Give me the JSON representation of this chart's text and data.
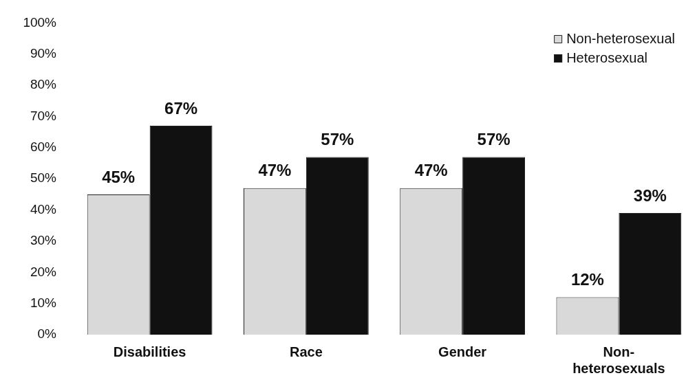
{
  "chart_data": {
    "type": "bar",
    "categories": [
      "Disabilities",
      "Race",
      "Gender",
      "Non-heterosexuals"
    ],
    "series": [
      {
        "name": "Non-heterosexual",
        "color": "#d9d9d9",
        "values": [
          45,
          47,
          47,
          12
        ],
        "value_labels": [
          "45%",
          "47%",
          "47%",
          "12%"
        ]
      },
      {
        "name": "Heterosexual",
        "color": "#111111",
        "values": [
          67,
          57,
          57,
          39
        ],
        "value_labels": [
          "67%",
          "57%",
          "57%",
          "39%"
        ]
      }
    ],
    "ylim": [
      0,
      100
    ],
    "yticks": [
      {
        "value": 0,
        "label": "0%"
      },
      {
        "value": 10,
        "label": "10%"
      },
      {
        "value": 20,
        "label": "20%"
      },
      {
        "value": 30,
        "label": "30%"
      },
      {
        "value": 40,
        "label": "40%"
      },
      {
        "value": 50,
        "label": "50%"
      },
      {
        "value": 60,
        "label": "60%"
      },
      {
        "value": 70,
        "label": "70%"
      },
      {
        "value": 80,
        "label": "80%"
      },
      {
        "value": 90,
        "label": "90%"
      },
      {
        "value": 100,
        "label": "100%"
      }
    ],
    "grid": false,
    "legend": "top right"
  }
}
